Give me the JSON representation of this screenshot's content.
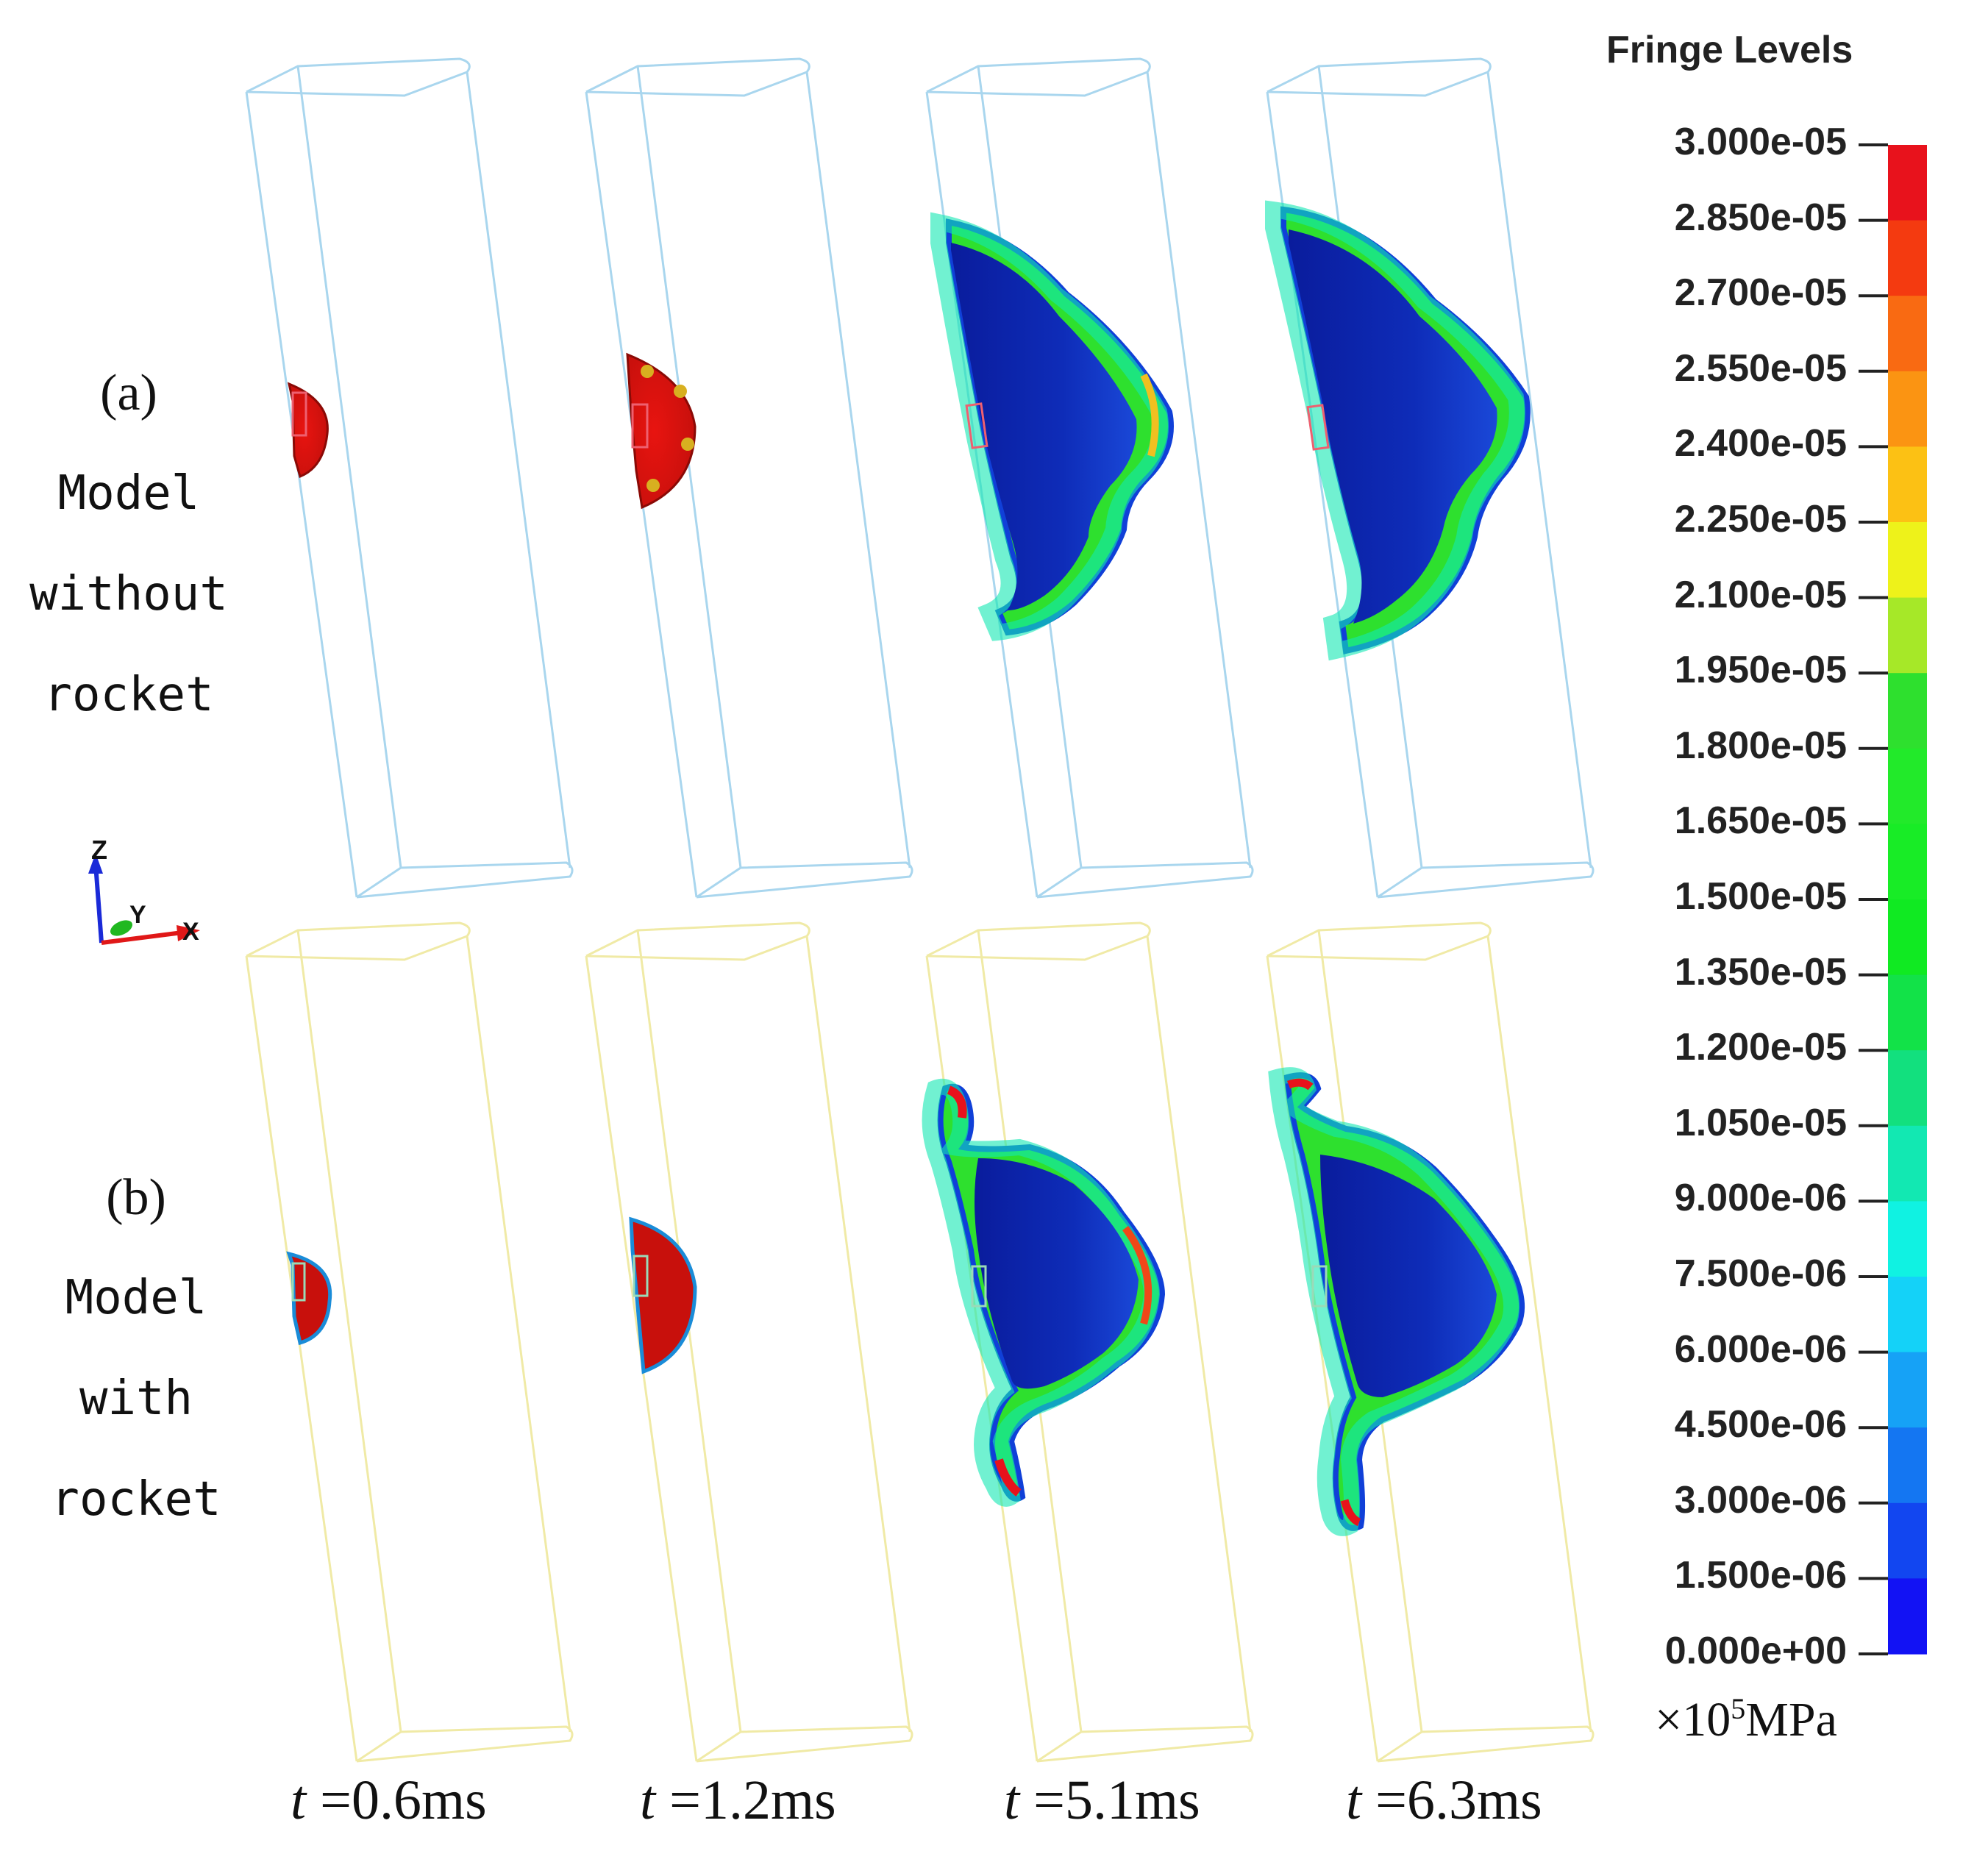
{
  "rows": [
    {
      "id": "a",
      "tag": "(a)",
      "lines": [
        "Model",
        "without",
        "rocket"
      ],
      "box_color": "#a9d6ee"
    },
    {
      "id": "b",
      "tag": "(b)",
      "lines": [
        "Model",
        "with",
        "rocket"
      ],
      "box_color": "#f0eaa6"
    }
  ],
  "time_labels": [
    {
      "var": "t",
      "value": " =0.6ms"
    },
    {
      "var": "t",
      "value": " =1.2ms"
    },
    {
      "var": "t",
      "value": " =5.1ms"
    },
    {
      "var": "t",
      "value": " =6.3ms"
    }
  ],
  "axis_triad": {
    "z": "Z",
    "y": "Y",
    "x": "X"
  },
  "legend": {
    "title": "Fringe Levels",
    "levels": [
      "3.000e-05",
      "2.850e-05",
      "2.700e-05",
      "2.550e-05",
      "2.400e-05",
      "2.250e-05",
      "2.100e-05",
      "1.950e-05",
      "1.800e-05",
      "1.650e-05",
      "1.500e-05",
      "1.350e-05",
      "1.200e-05",
      "1.050e-05",
      "9.000e-06",
      "7.500e-06",
      "6.000e-06",
      "4.500e-06",
      "3.000e-06",
      "1.500e-06",
      "0.000e+00"
    ],
    "colors": [
      "#e8121c",
      "#f43a10",
      "#f96a12",
      "#fb9412",
      "#fcc114",
      "#eef21a",
      "#a6e828",
      "#2ee02e",
      "#22ea2a",
      "#18ec26",
      "#10ea22",
      "#12e248",
      "#12e07e",
      "#12e8b2",
      "#10f2e2",
      "#14d2f8",
      "#16a2f6",
      "#1476f2",
      "#1246f0",
      "#1212f4"
    ],
    "unit_prefix": "×10",
    "unit_exp": "5",
    "unit_suffix": "MPa"
  }
}
